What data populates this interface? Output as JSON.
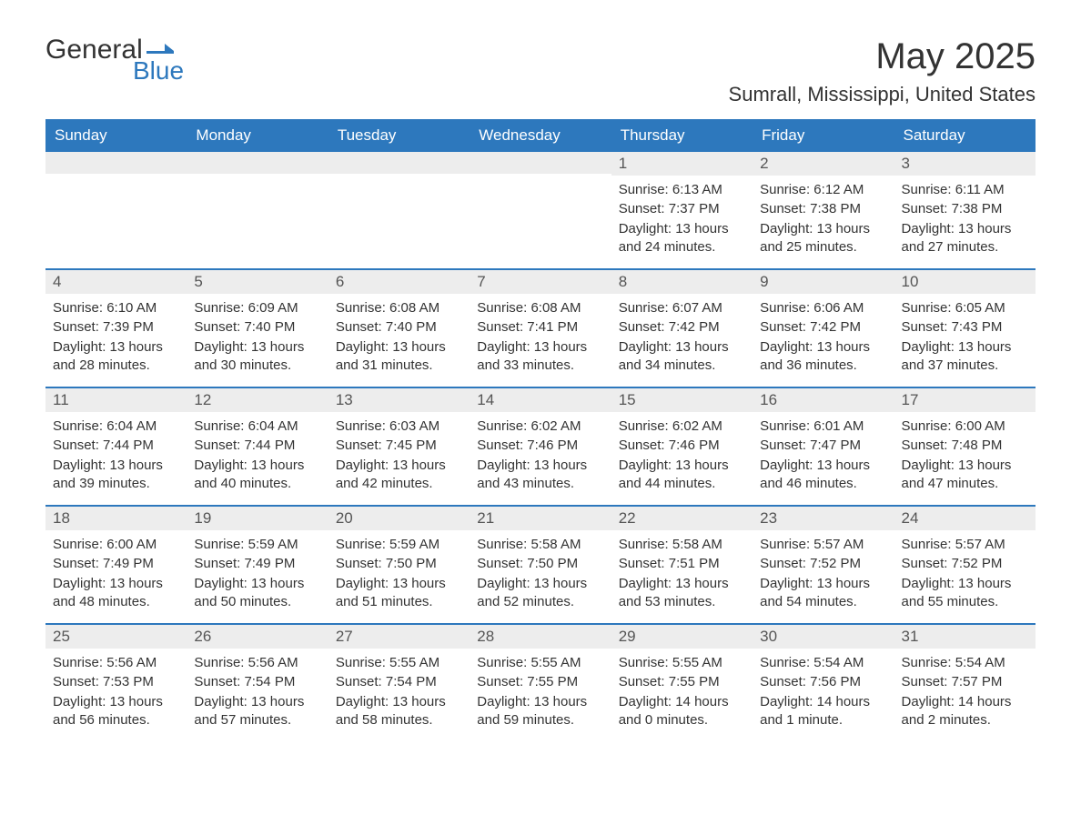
{
  "logo": {
    "general": "General",
    "blue": "Blue",
    "flag_color": "#2d78bd"
  },
  "title": "May 2025",
  "location": "Sumrall, Mississippi, United States",
  "colors": {
    "header_bg": "#2d78bd",
    "header_text": "#ffffff",
    "daynum_bg": "#ededed",
    "text": "#333333",
    "rule": "#2d78bd",
    "background": "#ffffff"
  },
  "fonts": {
    "title_size_pt": 30,
    "location_size_pt": 16,
    "dayheader_size_pt": 13,
    "body_size_pt": 11
  },
  "day_headers": [
    "Sunday",
    "Monday",
    "Tuesday",
    "Wednesday",
    "Thursday",
    "Friday",
    "Saturday"
  ],
  "weeks": [
    [
      {
        "n": "",
        "sunrise": "",
        "sunset": "",
        "daylight": ""
      },
      {
        "n": "",
        "sunrise": "",
        "sunset": "",
        "daylight": ""
      },
      {
        "n": "",
        "sunrise": "",
        "sunset": "",
        "daylight": ""
      },
      {
        "n": "",
        "sunrise": "",
        "sunset": "",
        "daylight": ""
      },
      {
        "n": "1",
        "sunrise": "Sunrise: 6:13 AM",
        "sunset": "Sunset: 7:37 PM",
        "daylight": "Daylight: 13 hours and 24 minutes."
      },
      {
        "n": "2",
        "sunrise": "Sunrise: 6:12 AM",
        "sunset": "Sunset: 7:38 PM",
        "daylight": "Daylight: 13 hours and 25 minutes."
      },
      {
        "n": "3",
        "sunrise": "Sunrise: 6:11 AM",
        "sunset": "Sunset: 7:38 PM",
        "daylight": "Daylight: 13 hours and 27 minutes."
      }
    ],
    [
      {
        "n": "4",
        "sunrise": "Sunrise: 6:10 AM",
        "sunset": "Sunset: 7:39 PM",
        "daylight": "Daylight: 13 hours and 28 minutes."
      },
      {
        "n": "5",
        "sunrise": "Sunrise: 6:09 AM",
        "sunset": "Sunset: 7:40 PM",
        "daylight": "Daylight: 13 hours and 30 minutes."
      },
      {
        "n": "6",
        "sunrise": "Sunrise: 6:08 AM",
        "sunset": "Sunset: 7:40 PM",
        "daylight": "Daylight: 13 hours and 31 minutes."
      },
      {
        "n": "7",
        "sunrise": "Sunrise: 6:08 AM",
        "sunset": "Sunset: 7:41 PM",
        "daylight": "Daylight: 13 hours and 33 minutes."
      },
      {
        "n": "8",
        "sunrise": "Sunrise: 6:07 AM",
        "sunset": "Sunset: 7:42 PM",
        "daylight": "Daylight: 13 hours and 34 minutes."
      },
      {
        "n": "9",
        "sunrise": "Sunrise: 6:06 AM",
        "sunset": "Sunset: 7:42 PM",
        "daylight": "Daylight: 13 hours and 36 minutes."
      },
      {
        "n": "10",
        "sunrise": "Sunrise: 6:05 AM",
        "sunset": "Sunset: 7:43 PM",
        "daylight": "Daylight: 13 hours and 37 minutes."
      }
    ],
    [
      {
        "n": "11",
        "sunrise": "Sunrise: 6:04 AM",
        "sunset": "Sunset: 7:44 PM",
        "daylight": "Daylight: 13 hours and 39 minutes."
      },
      {
        "n": "12",
        "sunrise": "Sunrise: 6:04 AM",
        "sunset": "Sunset: 7:44 PM",
        "daylight": "Daylight: 13 hours and 40 minutes."
      },
      {
        "n": "13",
        "sunrise": "Sunrise: 6:03 AM",
        "sunset": "Sunset: 7:45 PM",
        "daylight": "Daylight: 13 hours and 42 minutes."
      },
      {
        "n": "14",
        "sunrise": "Sunrise: 6:02 AM",
        "sunset": "Sunset: 7:46 PM",
        "daylight": "Daylight: 13 hours and 43 minutes."
      },
      {
        "n": "15",
        "sunrise": "Sunrise: 6:02 AM",
        "sunset": "Sunset: 7:46 PM",
        "daylight": "Daylight: 13 hours and 44 minutes."
      },
      {
        "n": "16",
        "sunrise": "Sunrise: 6:01 AM",
        "sunset": "Sunset: 7:47 PM",
        "daylight": "Daylight: 13 hours and 46 minutes."
      },
      {
        "n": "17",
        "sunrise": "Sunrise: 6:00 AM",
        "sunset": "Sunset: 7:48 PM",
        "daylight": "Daylight: 13 hours and 47 minutes."
      }
    ],
    [
      {
        "n": "18",
        "sunrise": "Sunrise: 6:00 AM",
        "sunset": "Sunset: 7:49 PM",
        "daylight": "Daylight: 13 hours and 48 minutes."
      },
      {
        "n": "19",
        "sunrise": "Sunrise: 5:59 AM",
        "sunset": "Sunset: 7:49 PM",
        "daylight": "Daylight: 13 hours and 50 minutes."
      },
      {
        "n": "20",
        "sunrise": "Sunrise: 5:59 AM",
        "sunset": "Sunset: 7:50 PM",
        "daylight": "Daylight: 13 hours and 51 minutes."
      },
      {
        "n": "21",
        "sunrise": "Sunrise: 5:58 AM",
        "sunset": "Sunset: 7:50 PM",
        "daylight": "Daylight: 13 hours and 52 minutes."
      },
      {
        "n": "22",
        "sunrise": "Sunrise: 5:58 AM",
        "sunset": "Sunset: 7:51 PM",
        "daylight": "Daylight: 13 hours and 53 minutes."
      },
      {
        "n": "23",
        "sunrise": "Sunrise: 5:57 AM",
        "sunset": "Sunset: 7:52 PM",
        "daylight": "Daylight: 13 hours and 54 minutes."
      },
      {
        "n": "24",
        "sunrise": "Sunrise: 5:57 AM",
        "sunset": "Sunset: 7:52 PM",
        "daylight": "Daylight: 13 hours and 55 minutes."
      }
    ],
    [
      {
        "n": "25",
        "sunrise": "Sunrise: 5:56 AM",
        "sunset": "Sunset: 7:53 PM",
        "daylight": "Daylight: 13 hours and 56 minutes."
      },
      {
        "n": "26",
        "sunrise": "Sunrise: 5:56 AM",
        "sunset": "Sunset: 7:54 PM",
        "daylight": "Daylight: 13 hours and 57 minutes."
      },
      {
        "n": "27",
        "sunrise": "Sunrise: 5:55 AM",
        "sunset": "Sunset: 7:54 PM",
        "daylight": "Daylight: 13 hours and 58 minutes."
      },
      {
        "n": "28",
        "sunrise": "Sunrise: 5:55 AM",
        "sunset": "Sunset: 7:55 PM",
        "daylight": "Daylight: 13 hours and 59 minutes."
      },
      {
        "n": "29",
        "sunrise": "Sunrise: 5:55 AM",
        "sunset": "Sunset: 7:55 PM",
        "daylight": "Daylight: 14 hours and 0 minutes."
      },
      {
        "n": "30",
        "sunrise": "Sunrise: 5:54 AM",
        "sunset": "Sunset: 7:56 PM",
        "daylight": "Daylight: 14 hours and 1 minute."
      },
      {
        "n": "31",
        "sunrise": "Sunrise: 5:54 AM",
        "sunset": "Sunset: 7:57 PM",
        "daylight": "Daylight: 14 hours and 2 minutes."
      }
    ]
  ]
}
